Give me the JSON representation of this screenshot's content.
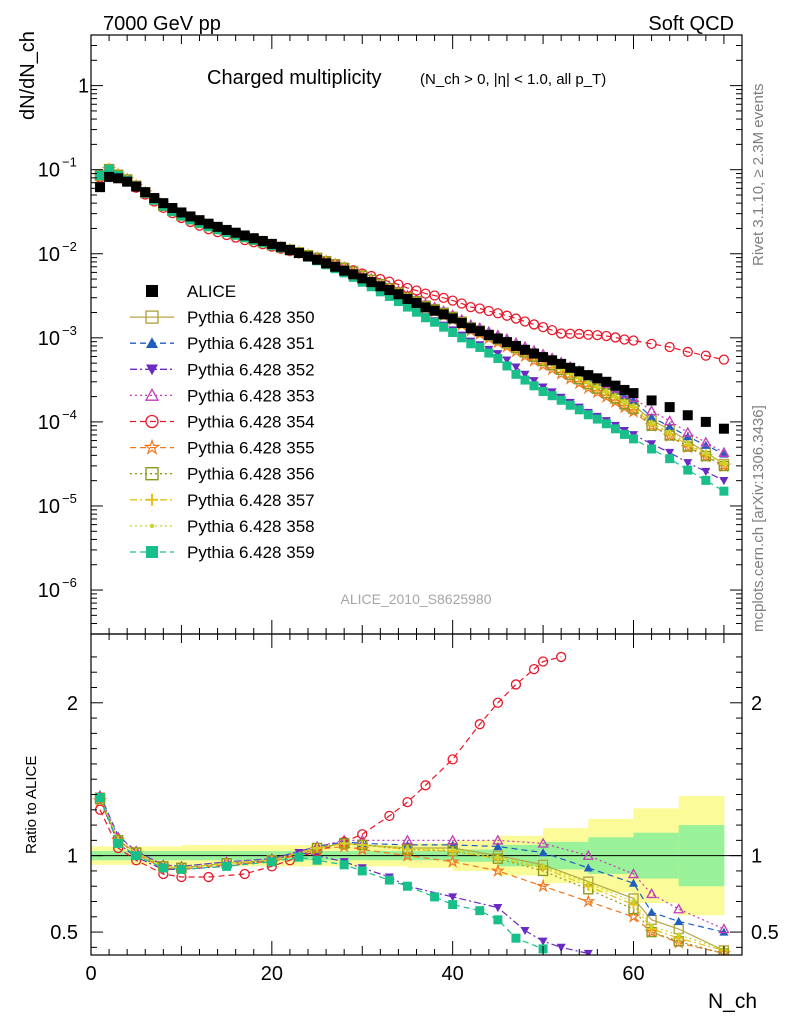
{
  "header": {
    "energy_label": "7000 GeV pp",
    "process_label": "Soft QCD"
  },
  "side_labels": {
    "rivet": "Rivet 3.1.10, ≥ 2.3M events",
    "mcplots": "mcplots.cern.ch [arXiv:1306.3436]"
  },
  "colors": {
    "ALICE": "#000000",
    "Pythia 6.428 350": "#b5a642",
    "Pythia 6.428 351": "#1f5ebf",
    "Pythia 6.428 352": "#6a2bc4",
    "Pythia 6.428 353": "#c43ab8",
    "Pythia 6.428 354": "#e8182a",
    "Pythia 6.428 355": "#f2781e",
    "Pythia 6.428 356": "#8c9a1c",
    "Pythia 6.428 357": "#e3c21a",
    "Pythia 6.428 358": "#c8d42a",
    "Pythia 6.428 359": "#19bf8a",
    "band_inner": "#99f299",
    "band_outer": "#fbfb99"
  },
  "chart_data": [
    {
      "type": "scatter",
      "title": "Charged multiplicity",
      "title_suffix": "(N_ch > 0, |η| < 1.0, all p_T)",
      "watermark": "ALICE_2010_S8625980",
      "xlabel": "N_ch",
      "ylabel": "dN/dN_ch",
      "yscale": "log",
      "xlim": [
        0,
        72
      ],
      "ylim": [
        3e-07,
        4
      ],
      "y_ticks": [
        "1",
        "10^-1",
        "10^-2",
        "10^-3",
        "10^-4",
        "10^-5",
        "10^-6"
      ],
      "legend_position": "center-left",
      "reference": {
        "name": "ALICE",
        "x": [
          1,
          2,
          3,
          4,
          5,
          6,
          7,
          8,
          9,
          10,
          11,
          12,
          13,
          14,
          15,
          16,
          17,
          18,
          19,
          20,
          21,
          22,
          23,
          24,
          25,
          26,
          27,
          28,
          29,
          30,
          31,
          32,
          33,
          34,
          35,
          36,
          37,
          38,
          39,
          40,
          41,
          42,
          43,
          44,
          45,
          46,
          47,
          48,
          49,
          50,
          51,
          52,
          53,
          54,
          55,
          56,
          57,
          58,
          59,
          60,
          62,
          64,
          66,
          68,
          70
        ],
        "y": [
          0.062,
          0.082,
          0.079,
          0.072,
          0.063,
          0.054,
          0.046,
          0.04,
          0.035,
          0.031,
          0.0278,
          0.0251,
          0.0228,
          0.0209,
          0.0192,
          0.0178,
          0.0165,
          0.0153,
          0.0142,
          0.0131,
          0.0121,
          0.0111,
          0.0102,
          0.0093,
          0.0085,
          0.0077,
          0.007,
          0.0063,
          0.0057,
          0.0051,
          0.0046,
          0.0041,
          0.0037,
          0.0033,
          0.0029,
          0.0026,
          0.0023,
          0.0021,
          0.0019,
          0.0017,
          0.0015,
          0.0013,
          0.0012,
          0.00108,
          0.00098,
          0.00089,
          0.0008,
          0.00072,
          0.00065,
          0.00059,
          0.00054,
          0.00049,
          0.00044,
          0.0004,
          0.00036,
          0.00033,
          0.0003,
          0.00027,
          0.00024,
          0.00022,
          0.00018,
          0.00015,
          0.00012,
          0.0001,
          8.3e-05
        ]
      },
      "series": [
        {
          "name": "Pythia 6.428 350",
          "marker": "square-open",
          "line": "solid",
          "end_value": 4.2e-05
        },
        {
          "name": "Pythia 6.428 351",
          "marker": "triangle-up",
          "line": "dashed",
          "end_value": 5.3e-05
        },
        {
          "name": "Pythia 6.428 352",
          "marker": "triangle-down",
          "line": "dashdot",
          "end_value": 2e-05
        },
        {
          "name": "Pythia 6.428 353",
          "marker": "triangle-up-open",
          "line": "dotted",
          "end_value": 4.9e-05
        },
        {
          "name": "Pythia 6.428 354",
          "marker": "circle-open",
          "line": "dashed",
          "end_value": 0.00055
        },
        {
          "name": "Pythia 6.428 355",
          "marker": "star-open",
          "line": "dashed",
          "end_value": 4e-05
        },
        {
          "name": "Pythia 6.428 356",
          "marker": "square-open",
          "line": "dotted",
          "end_value": 3.8e-05
        },
        {
          "name": "Pythia 6.428 357",
          "marker": "cross",
          "line": "dashdot",
          "end_value": 4e-05
        },
        {
          "name": "Pythia 6.428 358",
          "marker": "dot",
          "line": "dotted",
          "end_value": 4.1e-05
        },
        {
          "name": "Pythia 6.428 359",
          "marker": "square",
          "line": "dashed",
          "end_value": 1.5e-05
        }
      ]
    },
    {
      "type": "scatter",
      "ylabel": "Ratio to ALICE",
      "xlabel": "N_ch",
      "xlim": [
        0,
        72
      ],
      "ylim": [
        0.35,
        2.45
      ],
      "x_ticks": [
        0,
        20,
        40,
        60
      ],
      "y_ticks": [
        0.5,
        1,
        2
      ],
      "reference_line": 1,
      "uncertainty_band": {
        "x": [
          0,
          5,
          10,
          15,
          20,
          25,
          30,
          35,
          40,
          45,
          50,
          55,
          60,
          65,
          70
        ],
        "inner_half_width": [
          0.03,
          0.03,
          0.03,
          0.03,
          0.03,
          0.03,
          0.03,
          0.03,
          0.04,
          0.07,
          0.09,
          0.12,
          0.15,
          0.2,
          0.24
        ],
        "outer_half_width": [
          0.06,
          0.06,
          0.07,
          0.07,
          0.07,
          0.07,
          0.07,
          0.08,
          0.1,
          0.13,
          0.18,
          0.24,
          0.31,
          0.39,
          0.47
        ]
      },
      "series_ratios": [
        {
          "name": "Pythia 6.428 350",
          "x": [
            1,
            3,
            5,
            8,
            10,
            15,
            20,
            25,
            28,
            30,
            35,
            40,
            45,
            50,
            55,
            60,
            62,
            65,
            70
          ],
          "y": [
            1.38,
            1.1,
            1.02,
            0.93,
            0.92,
            0.95,
            0.97,
            1.05,
            1.08,
            1.07,
            1.05,
            1.05,
            1.0,
            0.94,
            0.83,
            0.72,
            0.58,
            0.52,
            0.38
          ]
        },
        {
          "name": "Pythia 6.428 351",
          "x": [
            1,
            3,
            5,
            8,
            10,
            15,
            20,
            25,
            28,
            30,
            35,
            40,
            45,
            50,
            55,
            60,
            62,
            65,
            70
          ],
          "y": [
            1.4,
            1.13,
            1.03,
            0.94,
            0.93,
            0.96,
            0.98,
            1.06,
            1.09,
            1.08,
            1.07,
            1.07,
            1.06,
            1.02,
            0.92,
            0.82,
            0.63,
            0.57,
            0.5
          ]
        },
        {
          "name": "Pythia 6.428 352",
          "x": [
            1,
            3,
            5,
            8,
            10,
            15,
            20,
            23,
            25,
            28,
            30,
            33,
            35,
            40,
            45,
            48,
            50,
            52,
            55
          ],
          "y": [
            1.37,
            1.08,
            0.99,
            0.91,
            0.91,
            0.93,
            0.97,
            1.02,
            1.0,
            0.96,
            0.92,
            0.86,
            0.8,
            0.73,
            0.66,
            0.51,
            0.44,
            0.4,
            0.36
          ]
        },
        {
          "name": "Pythia 6.428 353",
          "x": [
            1,
            3,
            5,
            8,
            10,
            15,
            20,
            25,
            28,
            30,
            35,
            40,
            45,
            50,
            55,
            60,
            62,
            65,
            70
          ],
          "y": [
            1.39,
            1.12,
            1.03,
            0.94,
            0.93,
            0.96,
            0.98,
            1.06,
            1.1,
            1.1,
            1.1,
            1.1,
            1.1,
            1.08,
            1.0,
            0.88,
            0.75,
            0.65,
            0.52
          ]
        },
        {
          "name": "Pythia 6.428 354",
          "x": [
            1,
            3,
            5,
            8,
            10,
            13,
            17,
            20,
            22,
            25,
            28,
            30,
            33,
            35,
            37,
            40,
            43,
            45,
            47,
            49,
            50,
            52
          ],
          "y": [
            1.3,
            1.05,
            0.97,
            0.88,
            0.86,
            0.86,
            0.88,
            0.93,
            0.97,
            1.03,
            1.09,
            1.14,
            1.26,
            1.35,
            1.46,
            1.63,
            1.86,
            2.0,
            2.12,
            2.22,
            2.27,
            2.3
          ]
        },
        {
          "name": "Pythia 6.428 355",
          "x": [
            1,
            3,
            5,
            8,
            10,
            15,
            20,
            25,
            28,
            30,
            35,
            40,
            45,
            50,
            55,
            60,
            62,
            65,
            70
          ],
          "y": [
            1.36,
            1.1,
            1.01,
            0.92,
            0.91,
            0.94,
            0.96,
            1.04,
            1.06,
            1.04,
            1.0,
            0.96,
            0.9,
            0.8,
            0.7,
            0.6,
            0.5,
            0.43,
            0.36
          ]
        },
        {
          "name": "Pythia 6.428 356",
          "x": [
            1,
            3,
            5,
            8,
            10,
            15,
            20,
            25,
            28,
            30,
            35,
            40,
            45,
            50,
            55,
            60,
            62,
            65,
            70
          ],
          "y": [
            1.37,
            1.1,
            1.02,
            0.93,
            0.92,
            0.95,
            0.97,
            1.05,
            1.08,
            1.07,
            1.04,
            1.03,
            0.98,
            0.9,
            0.78,
            0.65,
            0.5,
            0.44,
            0.36
          ]
        },
        {
          "name": "Pythia 6.428 357",
          "x": [
            1,
            3,
            5,
            8,
            10,
            15,
            20,
            25,
            28,
            30,
            35,
            40,
            45,
            50,
            55,
            60,
            62,
            65,
            70
          ],
          "y": [
            1.38,
            1.1,
            1.02,
            0.93,
            0.92,
            0.95,
            0.97,
            1.05,
            1.08,
            1.07,
            1.04,
            1.03,
            0.98,
            0.92,
            0.8,
            0.68,
            0.52,
            0.46,
            0.38
          ]
        },
        {
          "name": "Pythia 6.428 358",
          "x": [
            1,
            3,
            5,
            8,
            10,
            15,
            20,
            25,
            28,
            30,
            35,
            40,
            45,
            50,
            55,
            60,
            62,
            65,
            70
          ],
          "y": [
            1.38,
            1.1,
            1.02,
            0.93,
            0.92,
            0.95,
            0.97,
            1.05,
            1.08,
            1.07,
            1.05,
            1.04,
            0.99,
            0.93,
            0.82,
            0.7,
            0.54,
            0.48,
            0.39
          ]
        },
        {
          "name": "Pythia 6.428 359",
          "x": [
            1,
            3,
            5,
            8,
            10,
            15,
            20,
            23,
            25,
            28,
            30,
            33,
            35,
            38,
            40,
            43,
            45,
            47,
            50
          ],
          "y": [
            1.38,
            1.08,
            1.0,
            0.92,
            0.91,
            0.93,
            0.96,
            0.99,
            0.97,
            0.94,
            0.9,
            0.84,
            0.8,
            0.73,
            0.68,
            0.64,
            0.58,
            0.46,
            0.39
          ]
        }
      ]
    }
  ]
}
